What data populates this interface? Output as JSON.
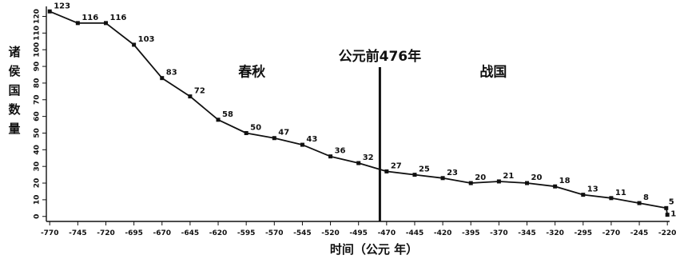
{
  "chart_data": {
    "type": "line",
    "xlabel": "时间（公元 年）",
    "ylabel": "诸侯国数量",
    "x": [
      -770,
      -745,
      -720,
      -695,
      -670,
      -645,
      -620,
      -595,
      -570,
      -545,
      -520,
      -495,
      -470,
      -445,
      -420,
      -395,
      -370,
      -345,
      -320,
      -295,
      -270,
      -245,
      -221,
      -220
    ],
    "values": [
      123,
      116,
      116,
      103,
      83,
      72,
      58,
      50,
      47,
      43,
      36,
      32,
      27,
      25,
      23,
      20,
      21,
      20,
      18,
      13,
      11,
      8,
      5,
      1
    ],
    "data_labels": [
      "123",
      "116",
      "116",
      "103",
      "83",
      "72",
      "58",
      "50",
      "47",
      "43",
      "36",
      "32",
      "27",
      "25",
      "23",
      "20",
      "21",
      "20",
      "18",
      "13",
      "11",
      "8",
      "5",
      "1"
    ],
    "xticks": [
      -770,
      -745,
      -720,
      -695,
      -670,
      -645,
      -620,
      -595,
      -570,
      -545,
      -520,
      -495,
      -470,
      -445,
      -420,
      -395,
      -370,
      -345,
      -320,
      -295,
      -270,
      -245,
      -220
    ],
    "xtick_labels": [
      "-770",
      "-745",
      "-720",
      "-695",
      "-670",
      "-645",
      "-620",
      "-595",
      "-570",
      "-545",
      "-520",
      "-495",
      "-470",
      "-445",
      "-420",
      "-395",
      "-370",
      "-345",
      "-320",
      "-295",
      "-270",
      "-245",
      "-220"
    ],
    "yticks": [
      0,
      10,
      20,
      30,
      40,
      50,
      60,
      70,
      80,
      90,
      100,
      110,
      120
    ],
    "ytick_labels": [
      "0",
      "10",
      "20",
      "30",
      "40",
      "50",
      "60",
      "70",
      "80",
      "90",
      "100",
      "110",
      "120"
    ],
    "xlim": [
      -773,
      -218
    ],
    "ylim": [
      -3,
      126
    ],
    "grid": false,
    "vline": {
      "x": -476,
      "label": "公元前476年"
    },
    "annotations": [
      {
        "text": "春秋",
        "x": -590,
        "y": 84
      },
      {
        "text": "战国",
        "x": -375,
        "y": 84
      }
    ],
    "colors": {
      "line": "#111111",
      "marker": "#111111",
      "axis": "#111111"
    }
  }
}
